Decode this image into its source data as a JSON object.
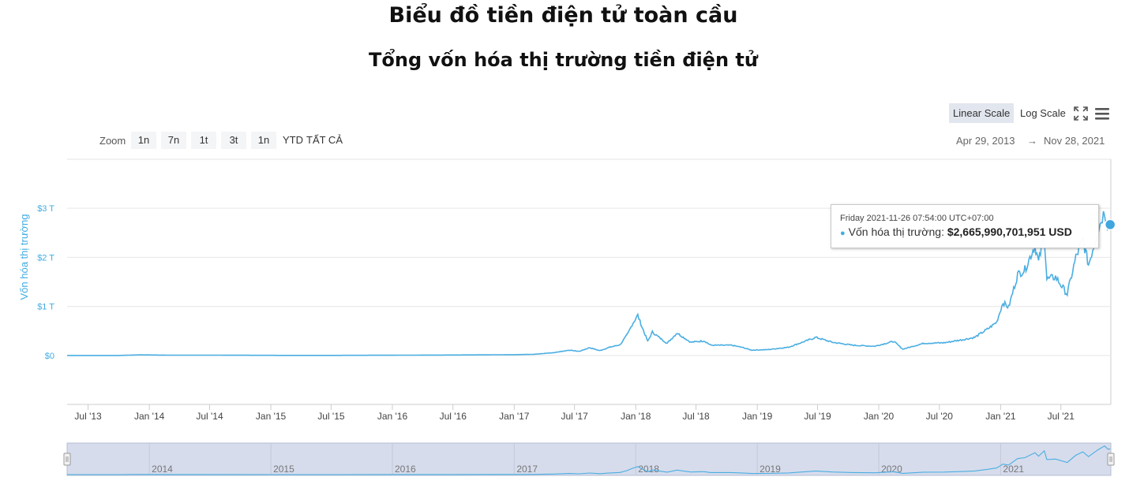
{
  "page": {
    "title": "Biểu đồ tiền điện tử toàn cầu",
    "subtitle": "Tổng vốn hóa thị trường tiền điện tử"
  },
  "controls": {
    "linear_scale": "Linear Scale",
    "log_scale": "Log Scale",
    "active_scale": "linear",
    "fullscreen_icon": "fullscreen-icon",
    "menu_icon": "hamburger-menu-icon",
    "zoom_label": "Zoom",
    "zoom_buttons": [
      "1n",
      "7n",
      "1t",
      "3t",
      "1n",
      "YTD",
      "TẤT CẢ"
    ],
    "range_from": "Apr 29, 2013",
    "range_arrow": "→",
    "range_to": "Nov 28, 2021"
  },
  "tooltip": {
    "date": "Friday 2021-11-26 07:54:00 UTC+07:00",
    "series": "Vốn hóa thị trường",
    "value": "$2,665,990,701,951 USD"
  },
  "colors": {
    "line": "#4aaee2",
    "axis_label": "#41ace3",
    "navigator_fill": "#d6dcec"
  },
  "chart_data": {
    "type": "line",
    "title": "Tổng vốn hóa thị trường tiền điện tử",
    "ylabel": "Vốn hóa thị trường",
    "y_unit": "USD (trillions)",
    "xlim": [
      "2013-04-29",
      "2021-11-28"
    ],
    "ylim": [
      -1,
      4
    ],
    "grid": true,
    "yticks": [
      {
        "value": 0,
        "label": "$0"
      },
      {
        "value": 1,
        "label": "$1 T"
      },
      {
        "value": 2,
        "label": "$2 T"
      },
      {
        "value": 3,
        "label": "$3 T"
      }
    ],
    "xticks": [
      {
        "date": "2013-07-01",
        "label": "Jul '13"
      },
      {
        "date": "2014-01-01",
        "label": "Jan '14"
      },
      {
        "date": "2014-07-01",
        "label": "Jul '14"
      },
      {
        "date": "2015-01-01",
        "label": "Jan '15"
      },
      {
        "date": "2015-07-01",
        "label": "Jul '15"
      },
      {
        "date": "2016-01-01",
        "label": "Jan '16"
      },
      {
        "date": "2016-07-01",
        "label": "Jul '16"
      },
      {
        "date": "2017-01-01",
        "label": "Jan '17"
      },
      {
        "date": "2017-07-01",
        "label": "Jul '17"
      },
      {
        "date": "2018-01-01",
        "label": "Jan '18"
      },
      {
        "date": "2018-07-01",
        "label": "Jul '18"
      },
      {
        "date": "2019-01-01",
        "label": "Jan '19"
      },
      {
        "date": "2019-07-01",
        "label": "Jul '19"
      },
      {
        "date": "2020-01-01",
        "label": "Jan '20"
      },
      {
        "date": "2020-07-01",
        "label": "Jul '20"
      },
      {
        "date": "2021-01-01",
        "label": "Jan '21"
      },
      {
        "date": "2021-07-01",
        "label": "Jul '21"
      }
    ],
    "navigator_years": [
      {
        "date": "2014-01-01",
        "label": "2014"
      },
      {
        "date": "2015-01-01",
        "label": "2015"
      },
      {
        "date": "2016-01-01",
        "label": "2016"
      },
      {
        "date": "2017-01-01",
        "label": "2017"
      },
      {
        "date": "2018-01-01",
        "label": "2018"
      },
      {
        "date": "2019-01-01",
        "label": "2019"
      },
      {
        "date": "2020-01-01",
        "label": "2020"
      },
      {
        "date": "2021-01-01",
        "label": "2021"
      }
    ],
    "series": [
      {
        "name": "Vốn hóa thị trường",
        "points": [
          [
            "2013-04-29",
            0.0015
          ],
          [
            "2013-10-01",
            0.002
          ],
          [
            "2013-12-05",
            0.014
          ],
          [
            "2014-03-01",
            0.008
          ],
          [
            "2014-07-01",
            0.008
          ],
          [
            "2015-01-15",
            0.004
          ],
          [
            "2015-08-01",
            0.004
          ],
          [
            "2016-01-01",
            0.007
          ],
          [
            "2016-07-01",
            0.011
          ],
          [
            "2017-01-01",
            0.018
          ],
          [
            "2017-03-01",
            0.025
          ],
          [
            "2017-05-01",
            0.06
          ],
          [
            "2017-06-15",
            0.11
          ],
          [
            "2017-07-15",
            0.085
          ],
          [
            "2017-08-15",
            0.16
          ],
          [
            "2017-09-15",
            0.1
          ],
          [
            "2017-10-15",
            0.17
          ],
          [
            "2017-11-15",
            0.22
          ],
          [
            "2017-12-08",
            0.44
          ],
          [
            "2017-12-20",
            0.62
          ],
          [
            "2018-01-07",
            0.82
          ],
          [
            "2018-01-20",
            0.58
          ],
          [
            "2018-02-06",
            0.29
          ],
          [
            "2018-02-20",
            0.48
          ],
          [
            "2018-03-10",
            0.38
          ],
          [
            "2018-04-05",
            0.25
          ],
          [
            "2018-05-05",
            0.46
          ],
          [
            "2018-06-15",
            0.27
          ],
          [
            "2018-07-25",
            0.3
          ],
          [
            "2018-08-15",
            0.21
          ],
          [
            "2018-10-15",
            0.21
          ],
          [
            "2018-11-15",
            0.17
          ],
          [
            "2018-12-15",
            0.11
          ],
          [
            "2019-02-01",
            0.12
          ],
          [
            "2019-04-05",
            0.17
          ],
          [
            "2019-06-26",
            0.37
          ],
          [
            "2019-08-15",
            0.27
          ],
          [
            "2019-10-15",
            0.21
          ],
          [
            "2019-12-20",
            0.19
          ],
          [
            "2020-02-15",
            0.29
          ],
          [
            "2020-03-13",
            0.13
          ],
          [
            "2020-05-15",
            0.25
          ],
          [
            "2020-07-15",
            0.26
          ],
          [
            "2020-09-15",
            0.33
          ],
          [
            "2020-10-15",
            0.37
          ],
          [
            "2020-11-25",
            0.55
          ],
          [
            "2020-12-20",
            0.68
          ],
          [
            "2021-01-08",
            1.08
          ],
          [
            "2021-01-25",
            0.98
          ],
          [
            "2021-02-21",
            1.65
          ],
          [
            "2021-03-15",
            1.75
          ],
          [
            "2021-04-14",
            2.25
          ],
          [
            "2021-04-25",
            1.9
          ],
          [
            "2021-05-12",
            2.45
          ],
          [
            "2021-05-20",
            1.55
          ],
          [
            "2021-06-15",
            1.6
          ],
          [
            "2021-07-20",
            1.25
          ],
          [
            "2021-08-15",
            2.0
          ],
          [
            "2021-09-05",
            2.35
          ],
          [
            "2021-09-22",
            1.85
          ],
          [
            "2021-10-20",
            2.55
          ],
          [
            "2021-11-09",
            2.95
          ],
          [
            "2021-11-20",
            2.6
          ],
          [
            "2021-11-26",
            2.67
          ]
        ]
      }
    ],
    "highlight": {
      "date": "2021-11-26",
      "value": 2.666
    }
  }
}
